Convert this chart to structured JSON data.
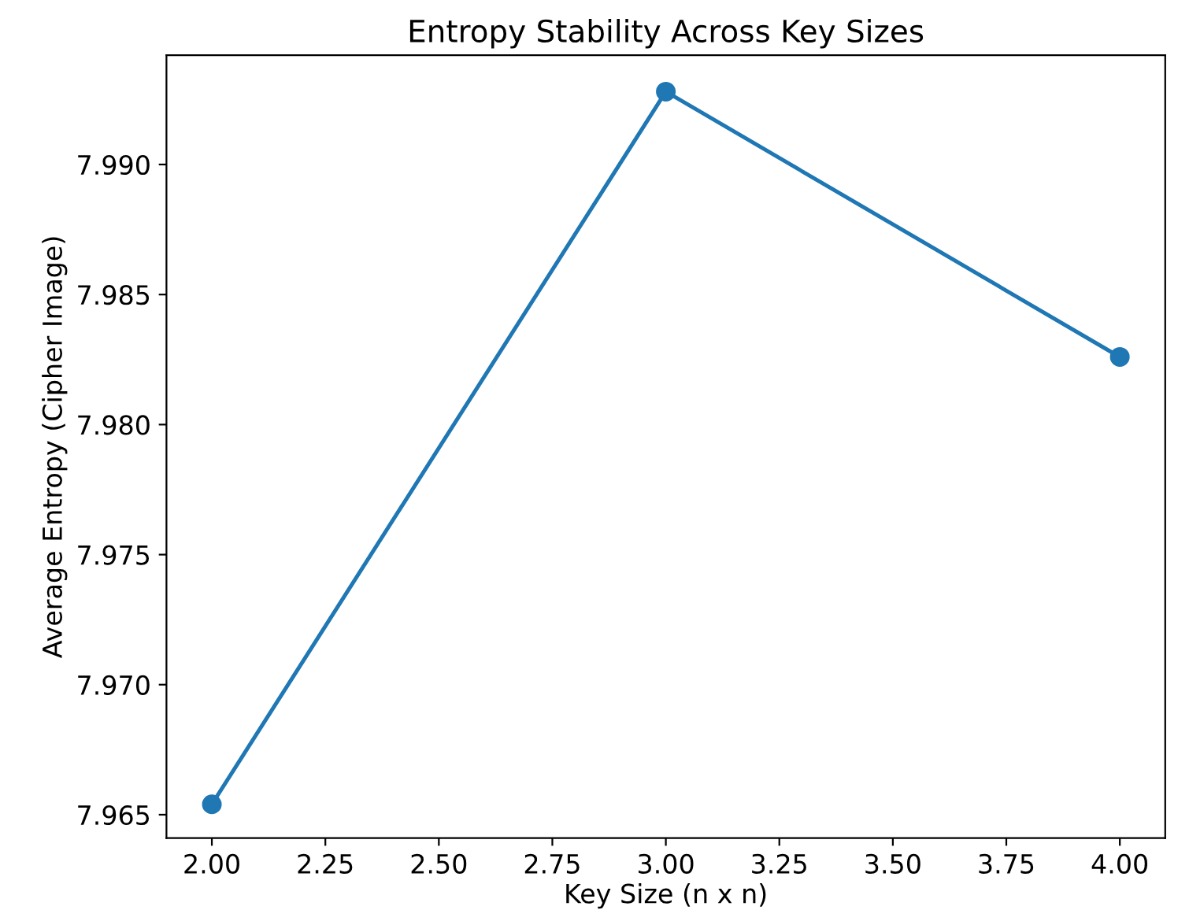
{
  "chart_data": {
    "type": "line",
    "title": "Entropy Stability Across Key Sizes",
    "xlabel": "Key Size (n x n)",
    "ylabel": "Average Entropy (Cipher Image)",
    "x": [
      2,
      3,
      4
    ],
    "series": [
      {
        "color": "#1f77b4",
        "values": [
          7.9654,
          7.9928,
          7.9826
        ]
      }
    ],
    "xlim": [
      1.9,
      4.1
    ],
    "xticks": [
      {
        "value": 2,
        "label": "2.00"
      },
      {
        "value": 2.25,
        "label": "2.25"
      },
      {
        "value": 2.5,
        "label": "2.50"
      },
      {
        "value": 2.75,
        "label": "2.75"
      },
      {
        "value": 3,
        "label": "3.00"
      },
      {
        "value": 3.25,
        "label": "3.25"
      },
      {
        "value": 3.5,
        "label": "3.50"
      },
      {
        "value": 3.75,
        "label": "3.75"
      },
      {
        "value": 4,
        "label": "4.00"
      }
    ],
    "ylim": [
      7.9641,
      7.9942
    ],
    "yticks": [
      {
        "value": 7.965,
        "label": "7.965"
      },
      {
        "value": 7.97,
        "label": "7.970"
      },
      {
        "value": 7.975,
        "label": "7.975"
      },
      {
        "value": 7.98,
        "label": "7.980"
      },
      {
        "value": 7.985,
        "label": "7.985"
      },
      {
        "value": 7.99,
        "label": "7.990"
      }
    ],
    "marker": "circle",
    "line_style": "solid",
    "grid": false
  }
}
